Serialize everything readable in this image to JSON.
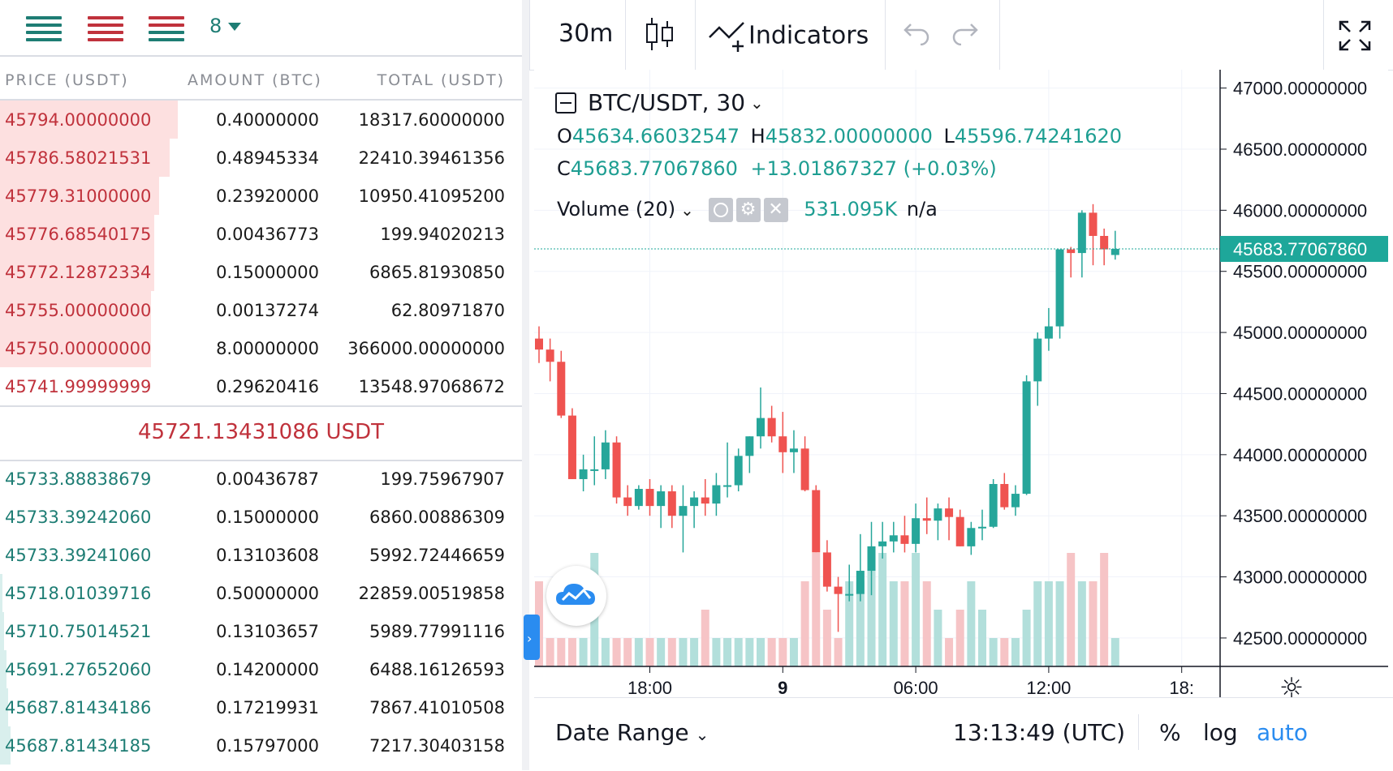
{
  "order_book": {
    "toolbar": {
      "modes": [
        {
          "icon": "both-sides-icon",
          "colors": [
            "#1e7d74",
            "#1e7d74",
            "#1e7d74"
          ]
        },
        {
          "icon": "asks-only-icon",
          "colors": [
            "#c0323c",
            "#c0323c",
            "#c0323c"
          ]
        },
        {
          "icon": "bids-only-icon",
          "colors": [
            "#c0323c",
            "#1e7d74",
            "#1e7d74"
          ]
        }
      ],
      "depth_value": "8"
    },
    "columns": {
      "price": "PRICE (USDT)",
      "amount": "AMOUNT (BTC)",
      "total": "TOTAL (USDT)"
    },
    "asks": [
      {
        "price": "45794.00000000",
        "amount": "0.40000000",
        "total": "18317.60000000",
        "depth": 0.34
      },
      {
        "price": "45786.58021531",
        "amount": "0.48945334",
        "total": "22410.39461356",
        "depth": 0.325
      },
      {
        "price": "45779.31000000",
        "amount": "0.23920000",
        "total": "10950.41095200",
        "depth": 0.305
      },
      {
        "price": "45776.68540175",
        "amount": "0.00436773",
        "total": "199.94020213",
        "depth": 0.295
      },
      {
        "price": "45772.12872334",
        "amount": "0.15000000",
        "total": "6865.81930850",
        "depth": 0.295
      },
      {
        "price": "45755.00000000",
        "amount": "0.00137274",
        "total": "62.80971870",
        "depth": 0.29
      },
      {
        "price": "45750.00000000",
        "amount": "8.00000000",
        "total": "366000.00000000",
        "depth": 0.29
      },
      {
        "price": "45741.99999999",
        "amount": "0.29620416",
        "total": "13548.97068672",
        "depth": 0
      }
    ],
    "mid_price": "45721.13431086 USDT",
    "bids": [
      {
        "price": "45733.88838679",
        "amount": "0.00436787",
        "total": "199.75967907",
        "depth": 0
      },
      {
        "price": "45733.39242060",
        "amount": "0.15000000",
        "total": "6860.00886309",
        "depth": 0
      },
      {
        "price": "45733.39241060",
        "amount": "0.13103608",
        "total": "5992.72446659",
        "depth": 0
      },
      {
        "price": "45718.01039716",
        "amount": "0.50000000",
        "total": "22859.00519858",
        "depth": 0.005
      },
      {
        "price": "45710.75014521",
        "amount": "0.13103657",
        "total": "5989.77991116",
        "depth": 0.008
      },
      {
        "price": "45691.27652060",
        "amount": "0.14200000",
        "total": "6488.16126593",
        "depth": 0.012
      },
      {
        "price": "45687.81434186",
        "amount": "0.17219931",
        "total": "7867.41010508",
        "depth": 0.016
      },
      {
        "price": "45687.81434185",
        "amount": "0.15797000",
        "total": "7217.30403158",
        "depth": 0.02
      }
    ]
  },
  "chart": {
    "toolbar": {
      "interval": "30m",
      "chart_type_icon": "candles-icon",
      "indicators_label": "Indicators",
      "undo_icon": "undo-icon",
      "redo_icon": "redo-icon",
      "fullscreen_icon": "fullscreen-icon"
    },
    "legend": {
      "symbol": "BTC/USDT, 30",
      "o_label": "O",
      "o_value": "45634.66032547",
      "h_label": "H",
      "h_value": "45832.00000000",
      "l_label": "L",
      "l_value": "45596.74241620",
      "c_label": "C",
      "c_value": "45683.77067860",
      "change": "+13.01867327 (+0.03%)",
      "volume_label": "Volume (20)",
      "volume_value": "531.095K",
      "volume_extra": "n/a"
    },
    "footer": {
      "date_range": "Date Range",
      "time": "13:13:49 (UTC)",
      "percent": "%",
      "log": "log",
      "auto": "auto"
    },
    "colors": {
      "up": "#26a69a",
      "down": "#ef5350",
      "up_vol": "#b2dfdb",
      "down_vol": "#f6c4c6",
      "last": "#1ea79a",
      "accent": "#2a8cf0"
    }
  },
  "chart_data": {
    "type": "candlestick",
    "title": "BTC/USDT, 30",
    "y_axis_ticks": [
      "47000.00000000",
      "46500.00000000",
      "46000.00000000",
      "45500.00000000",
      "45000.00000000",
      "44500.00000000",
      "44000.00000000",
      "43500.00000000",
      "43000.00000000",
      "42500.00000000"
    ],
    "y_tick_values": [
      47000,
      46500,
      46000,
      45500,
      45000,
      44500,
      44000,
      43500,
      43000,
      42500
    ],
    "ylim": [
      42400,
      47150
    ],
    "x_axis_ticks": [
      {
        "label": "18:00",
        "index": 10,
        "bold": false
      },
      {
        "label": "9",
        "index": 22,
        "bold": true
      },
      {
        "label": "06:00",
        "index": 34,
        "bold": false
      },
      {
        "label": "12:00",
        "index": 46,
        "bold": false
      },
      {
        "label": "18:",
        "index": 58,
        "bold": false
      }
    ],
    "last_price": "45683.77067860",
    "last_value": 45683.77,
    "candles": [
      [
        44950,
        45050,
        44750,
        44860
      ],
      [
        44860,
        44950,
        44600,
        44760
      ],
      [
        44760,
        44850,
        44300,
        44320
      ],
      [
        44320,
        44380,
        43800,
        43800
      ],
      [
        43800,
        44000,
        43700,
        43880
      ],
      [
        43880,
        44150,
        43750,
        43880
      ],
      [
        43880,
        44200,
        43800,
        44100
      ],
      [
        44100,
        44150,
        43600,
        43650
      ],
      [
        43650,
        43750,
        43500,
        43580
      ],
      [
        43580,
        43750,
        43550,
        43720
      ],
      [
        43720,
        43800,
        43500,
        43580
      ],
      [
        43580,
        43750,
        43400,
        43700
      ],
      [
        43700,
        43750,
        43400,
        43500
      ],
      [
        43500,
        43750,
        43200,
        43580
      ],
      [
        43580,
        43700,
        43400,
        43650
      ],
      [
        43650,
        43800,
        43500,
        43600
      ],
      [
        43600,
        43850,
        43500,
        43750
      ],
      [
        43750,
        44100,
        43650,
        43750
      ],
      [
        43750,
        44050,
        43700,
        43990
      ],
      [
        43990,
        44150,
        43850,
        44150
      ],
      [
        44150,
        44550,
        44050,
        44300
      ],
      [
        44300,
        44400,
        44100,
        44150
      ],
      [
        44150,
        44350,
        43850,
        44020
      ],
      [
        44020,
        44200,
        43850,
        44050
      ],
      [
        44050,
        44150,
        43700,
        43710
      ],
      [
        43710,
        43750,
        43200,
        43200
      ],
      [
        43200,
        43300,
        42880,
        42920
      ],
      [
        42920,
        43000,
        42550,
        42860
      ],
      [
        42860,
        43100,
        42800,
        42860
      ],
      [
        42860,
        43350,
        42800,
        43050
      ],
      [
        43050,
        43450,
        42850,
        43250
      ],
      [
        43250,
        43450,
        43150,
        43290
      ],
      [
        43290,
        43450,
        43200,
        43340
      ],
      [
        43340,
        43500,
        43200,
        43270
      ],
      [
        43270,
        43600,
        43200,
        43480
      ],
      [
        43480,
        43650,
        43350,
        43460
      ],
      [
        43460,
        43600,
        43300,
        43560
      ],
      [
        43560,
        43650,
        43300,
        43490
      ],
      [
        43490,
        43550,
        43250,
        43250
      ],
      [
        43250,
        43450,
        43180,
        43400
      ],
      [
        43400,
        43550,
        43300,
        43410
      ],
      [
        43410,
        43800,
        43400,
        43760
      ],
      [
        43760,
        43850,
        43550,
        43570
      ],
      [
        43570,
        43750,
        43500,
        43680
      ],
      [
        43680,
        44650,
        43670,
        44600
      ],
      [
        44600,
        45000,
        44400,
        44950
      ],
      [
        44950,
        45200,
        44850,
        45050
      ],
      [
        45050,
        45650,
        44950,
        45680
      ],
      [
        45680,
        45700,
        45450,
        45650
      ],
      [
        45650,
        46000,
        45450,
        45980
      ],
      [
        45980,
        46050,
        45550,
        45790
      ],
      [
        45790,
        45850,
        45550,
        45680
      ],
      [
        45634,
        45832,
        45596,
        45684
      ]
    ],
    "volume": [
      3,
      1,
      1,
      1,
      1,
      4,
      1,
      1,
      1,
      1,
      1,
      1,
      1,
      1,
      1,
      2,
      1,
      1,
      1,
      1,
      1,
      1,
      1,
      1,
      3,
      4,
      2,
      1,
      3,
      3,
      4,
      4,
      3,
      3,
      4,
      3,
      2,
      1,
      2,
      3,
      2,
      1,
      1,
      1,
      2,
      3,
      3,
      3,
      4,
      3,
      3,
      4,
      1
    ]
  }
}
